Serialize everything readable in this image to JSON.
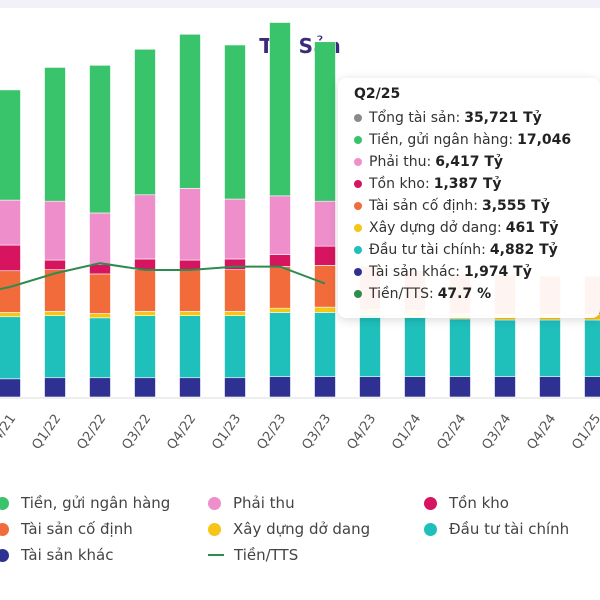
{
  "chart_data": {
    "type": "bar",
    "title": "Tài Sản",
    "categories": [
      "Q4/21",
      "Q1/22",
      "Q2/22",
      "Q3/22",
      "Q4/22",
      "Q1/23",
      "Q2/23",
      "Q3/23",
      "Q4/23",
      "Q1/24",
      "Q2/24",
      "Q3/24",
      "Q4/24",
      "Q1/25"
    ],
    "visible_tick_labels": [
      "4/21",
      "Q1/22",
      "Q2/22",
      "Q3/22",
      "Q4/22",
      "Q1/23",
      "Q2/23",
      "Q3/23",
      "Q4/23",
      "Q1/24",
      "Q2/24",
      "Q3/24",
      "Q4/24",
      "Q1/25"
    ],
    "stacked": true,
    "series": [
      {
        "name": "Tài sản khác",
        "color": "#2e3192",
        "values": [
          1.7,
          1.8,
          1.8,
          1.8,
          1.8,
          1.8,
          1.9,
          1.9,
          1.9,
          1.9,
          1.9,
          1.9,
          1.9,
          1.9
        ]
      },
      {
        "name": "Đầu tư tài chính",
        "color": "#1fc0bc",
        "values": [
          5.8,
          5.8,
          5.6,
          5.8,
          5.8,
          5.8,
          6.0,
          6.0,
          5.8,
          5.6,
          5.4,
          5.3,
          5.3,
          5.3
        ]
      },
      {
        "name": "Xây dựng dở dang",
        "color": "#f5c518",
        "values": [
          0.4,
          0.4,
          0.4,
          0.4,
          0.4,
          0.4,
          0.4,
          0.5,
          0.5,
          0.6,
          0.5,
          0.5,
          0.5,
          0.5
        ]
      },
      {
        "name": "Tài sản cố định",
        "color": "#f26b3a",
        "values": [
          3.9,
          3.9,
          3.7,
          3.9,
          3.9,
          3.9,
          3.9,
          3.9,
          4.0,
          3.7,
          3.7,
          3.7,
          3.6,
          3.6
        ]
      },
      {
        "name": "Tồn kho",
        "color": "#d6145f",
        "values": [
          2.4,
          0.9,
          0.9,
          1.0,
          0.9,
          1.0,
          1.1,
          1.8,
          null,
          null,
          null,
          null,
          null,
          null
        ]
      },
      {
        "name": "Phải thu",
        "color": "#ee8ecb",
        "values": [
          4.2,
          5.5,
          4.8,
          6.0,
          6.7,
          5.6,
          5.5,
          4.2,
          null,
          null,
          null,
          null,
          null,
          null
        ]
      },
      {
        "name": "Tiền, gửi ngân hàng",
        "color": "#39c36b",
        "values": [
          10.3,
          12.5,
          13.8,
          13.6,
          14.4,
          14.4,
          16.2,
          14.9,
          null,
          null,
          null,
          null,
          null,
          null
        ]
      }
    ],
    "line_series": {
      "name": "Tiền/TTS",
      "color": "#2f8c4e",
      "values": [
        36,
        40,
        43,
        41,
        41,
        42,
        42,
        37,
        null,
        null,
        null,
        null,
        null,
        null
      ]
    },
    "grid": false
  },
  "tooltip": {
    "title": "Q2/25",
    "rows": [
      {
        "label": "Tổng tài sản:",
        "value": "35,721 Tỷ",
        "color": "#8a8a8a"
      },
      {
        "label": "Tiền, gửi ngân hàng:",
        "value": "17,046",
        "color": "#39c36b"
      },
      {
        "label": "Phải thu:",
        "value": "6,417 Tỷ",
        "color": "#ee8ecb"
      },
      {
        "label": "Tồn kho:",
        "value": "1,387 Tỷ",
        "color": "#d6145f"
      },
      {
        "label": "Tài sản cố định:",
        "value": "3,555 Tỷ",
        "color": "#f26b3a"
      },
      {
        "label": "Xây dựng dở dang:",
        "value": "461 Tỷ",
        "color": "#f5c518"
      },
      {
        "label": "Đầu tư tài chính:",
        "value": "4,882 Tỷ",
        "color": "#1fc0bc"
      },
      {
        "label": "Tài sản khác:",
        "value": "1,974 Tỷ",
        "color": "#2e3192"
      },
      {
        "label": "Tiền/TTS:",
        "value": "47.7 %",
        "color": "#2f8c4e"
      }
    ]
  },
  "legend": {
    "items": [
      {
        "label": "Tiền, gửi ngân hàng",
        "color": "#39c36b",
        "shape": "dot"
      },
      {
        "label": "Phải thu",
        "color": "#ee8ecb",
        "shape": "dot"
      },
      {
        "label": "Tồn kho",
        "color": "#d6145f",
        "shape": "dot"
      },
      {
        "label": "Tài sản cố định",
        "color": "#f26b3a",
        "shape": "dot"
      },
      {
        "label": "Xây dựng dở dang",
        "color": "#f5c518",
        "shape": "dot"
      },
      {
        "label": "Đầu tư tài chính",
        "color": "#1fc0bc",
        "shape": "dot"
      },
      {
        "label": "Tài sản khác",
        "color": "#2e3192",
        "shape": "dot"
      },
      {
        "label": "Tiền/TTS",
        "color": "#2f8c4e",
        "shape": "line"
      }
    ]
  }
}
